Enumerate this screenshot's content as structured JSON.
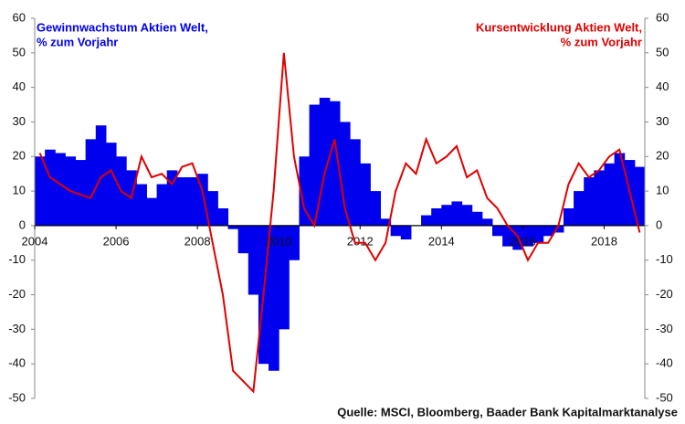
{
  "chart_data": {
    "type": "bar_line",
    "xlim": [
      2004,
      2019
    ],
    "xticks": [
      2004,
      2006,
      2008,
      2010,
      2012,
      2014,
      2016,
      2018
    ],
    "ylim": [
      -50,
      60
    ],
    "yticks": [
      -50,
      -40,
      -30,
      -20,
      -10,
      0,
      10,
      20,
      30,
      40,
      50,
      60
    ],
    "y2lim": [
      -50,
      60
    ],
    "y2ticks": [
      -50,
      -40,
      -30,
      -20,
      -10,
      0,
      10,
      20,
      30,
      40,
      50,
      60
    ],
    "x": [
      2004,
      2004.25,
      2004.5,
      2004.75,
      2005,
      2005.25,
      2005.5,
      2005.75,
      2006,
      2006.25,
      2006.5,
      2006.75,
      2007,
      2007.25,
      2007.5,
      2007.75,
      2008,
      2008.25,
      2008.5,
      2008.75,
      2009,
      2009.25,
      2009.5,
      2009.75,
      2010,
      2010.25,
      2010.5,
      2010.75,
      2011,
      2011.25,
      2011.5,
      2011.75,
      2012,
      2012.25,
      2012.5,
      2012.75,
      2013,
      2013.25,
      2013.5,
      2013.75,
      2014,
      2014.25,
      2014.5,
      2014.75,
      2015,
      2015.25,
      2015.5,
      2015.75,
      2016,
      2016.25,
      2016.5,
      2016.75,
      2017,
      2017.25,
      2017.5,
      2017.75,
      2018,
      2018.25,
      2018.5,
      2018.75
    ],
    "series": [
      {
        "name": "Gewinnwachstum Aktien Welt,",
        "unit": "% zum Vorjahr",
        "color": "#0000ee",
        "kind": "bar",
        "values": [
          20,
          22,
          21,
          20,
          19,
          25,
          29,
          24,
          20,
          16,
          12,
          8,
          12,
          16,
          14,
          14,
          15,
          10,
          5,
          -1,
          -8,
          -20,
          -40,
          -42,
          -30,
          -10,
          20,
          35,
          37,
          36,
          30,
          25,
          18,
          10,
          2,
          -3,
          -4,
          0,
          3,
          5,
          6,
          7,
          6,
          4,
          2,
          -3,
          -6,
          -7,
          -6,
          -5,
          -3,
          -2,
          5,
          10,
          14,
          16,
          18,
          21,
          19,
          17
        ]
      },
      {
        "name": "Kursentwicklung Aktien Welt,",
        "unit": "% zum Vorjahr",
        "color": "#e00000",
        "kind": "line",
        "axis": "y2",
        "values": [
          21,
          14,
          12,
          10,
          9,
          8,
          14,
          16,
          10,
          8,
          20,
          14,
          15,
          12,
          17,
          18,
          10,
          -5,
          -20,
          -42,
          -45,
          -48,
          -20,
          10,
          50,
          20,
          5,
          0,
          15,
          25,
          5,
          -5,
          -5,
          -10,
          -5,
          10,
          18,
          15,
          25,
          18,
          20,
          23,
          14,
          16,
          8,
          5,
          0,
          -3,
          -10,
          -5,
          -5,
          0,
          12,
          18,
          14,
          16,
          20,
          22,
          10,
          -2
        ]
      }
    ],
    "source": "Quelle: MSCI, Bloomberg, Baader Bank Kapitalmarktanalyse"
  }
}
